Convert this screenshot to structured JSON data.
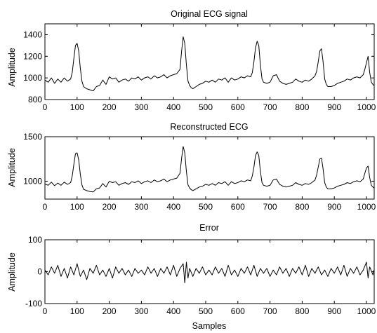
{
  "figure": {
    "xlabel": "Samples"
  },
  "chart_data": [
    {
      "type": "line",
      "title": "Original ECG signal",
      "xlabel": "",
      "ylabel": "Amplitude",
      "xlim": [
        0,
        1024
      ],
      "ylim": [
        800,
        1500
      ],
      "xticks": [
        0,
        100,
        200,
        300,
        400,
        500,
        600,
        700,
        800,
        900,
        1000
      ],
      "yticks": [
        800,
        1000,
        1200,
        1400
      ],
      "grid": false,
      "line_color": "#000000",
      "series": [
        {
          "x": [
            0,
            10,
            20,
            30,
            40,
            50,
            60,
            70,
            80,
            85,
            90,
            95,
            100,
            105,
            110,
            115,
            120,
            130,
            140,
            150,
            160,
            170,
            180,
            190,
            200,
            210,
            220,
            230,
            240,
            250,
            260,
            270,
            280,
            290,
            300,
            310,
            320,
            330,
            340,
            350,
            360,
            370,
            380,
            390,
            400,
            410,
            420,
            425,
            430,
            435,
            440,
            445,
            450,
            455,
            460,
            470,
            480,
            490,
            500,
            510,
            520,
            530,
            540,
            550,
            560,
            570,
            580,
            590,
            600,
            610,
            620,
            630,
            640,
            645,
            650,
            655,
            660,
            665,
            670,
            675,
            680,
            690,
            700,
            710,
            720,
            730,
            740,
            750,
            760,
            770,
            780,
            790,
            800,
            810,
            820,
            830,
            840,
            845,
            850,
            855,
            860,
            865,
            870,
            875,
            880,
            890,
            900,
            910,
            920,
            930,
            940,
            950,
            960,
            970,
            980,
            990,
            995,
            1000,
            1005,
            1010,
            1015,
            1020,
            1023
          ],
          "values": [
            980,
            960,
            1000,
            950,
            990,
            960,
            1000,
            970,
            990,
            1050,
            1180,
            1300,
            1320,
            1250,
            1090,
            970,
            920,
            900,
            890,
            880,
            920,
            930,
            980,
            940,
            1010,
            990,
            1000,
            960,
            980,
            990,
            970,
            1000,
            990,
            1010,
            980,
            1000,
            1010,
            990,
            1020,
            1000,
            1010,
            1030,
            1000,
            1020,
            1030,
            1040,
            1080,
            1250,
            1380,
            1320,
            1120,
            970,
            930,
            910,
            900,
            920,
            940,
            950,
            970,
            960,
            980,
            960,
            990,
            980,
            1000,
            960,
            1000,
            980,
            990,
            1010,
            1000,
            1020,
            1010,
            1050,
            1150,
            1280,
            1340,
            1300,
            1120,
            990,
            960,
            950,
            960,
            1020,
            1030,
            970,
            950,
            940,
            950,
            960,
            990,
            970,
            960,
            980,
            970,
            990,
            1020,
            1060,
            1150,
            1250,
            1270,
            1150,
            990,
            940,
            920,
            920,
            930,
            950,
            960,
            970,
            990,
            980,
            1000,
            1010,
            1000,
            1030,
            1080,
            1140,
            1200,
            1050,
            960,
            940,
            930
          ]
        }
      ]
    },
    {
      "type": "line",
      "title": "Reconstructed ECG",
      "xlabel": "",
      "ylabel": "Amplitude",
      "xlim": [
        0,
        1024
      ],
      "ylim": [
        800,
        1500
      ],
      "xticks": [
        0,
        100,
        200,
        300,
        400,
        500,
        600,
        700,
        800,
        900,
        1000
      ],
      "yticks": [
        1000,
        1500
      ],
      "grid": false,
      "line_color": "#000000",
      "series": [
        {
          "x": [
            0,
            10,
            20,
            30,
            40,
            50,
            60,
            70,
            80,
            85,
            90,
            95,
            100,
            105,
            110,
            115,
            120,
            130,
            140,
            150,
            160,
            170,
            180,
            190,
            200,
            210,
            220,
            230,
            240,
            250,
            260,
            270,
            280,
            290,
            300,
            310,
            320,
            330,
            340,
            350,
            360,
            370,
            380,
            390,
            400,
            410,
            420,
            425,
            430,
            435,
            440,
            445,
            450,
            455,
            460,
            470,
            480,
            490,
            500,
            510,
            520,
            530,
            540,
            550,
            560,
            570,
            580,
            590,
            600,
            610,
            620,
            630,
            640,
            645,
            650,
            655,
            660,
            665,
            670,
            675,
            680,
            690,
            700,
            710,
            720,
            730,
            740,
            750,
            760,
            770,
            780,
            790,
            800,
            810,
            820,
            830,
            840,
            845,
            850,
            855,
            860,
            865,
            870,
            875,
            880,
            890,
            900,
            910,
            920,
            930,
            940,
            950,
            960,
            970,
            980,
            990,
            995,
            1000,
            1005,
            1010,
            1015,
            1020,
            1023
          ],
          "values": [
            970,
            955,
            990,
            950,
            980,
            955,
            990,
            965,
            985,
            1060,
            1190,
            1310,
            1320,
            1240,
            1080,
            960,
            910,
            895,
            885,
            880,
            915,
            925,
            975,
            935,
            1000,
            985,
            995,
            955,
            975,
            985,
            965,
            995,
            985,
            1005,
            975,
            995,
            1005,
            985,
            1015,
            995,
            1005,
            1025,
            995,
            1015,
            1025,
            1035,
            1090,
            1260,
            1390,
            1320,
            1110,
            960,
            925,
            905,
            895,
            915,
            935,
            945,
            965,
            955,
            975,
            955,
            985,
            975,
            995,
            955,
            995,
            975,
            985,
            1005,
            995,
            1015,
            1005,
            1060,
            1160,
            1290,
            1330,
            1290,
            1110,
            985,
            955,
            945,
            955,
            1015,
            1025,
            965,
            945,
            935,
            945,
            955,
            985,
            965,
            955,
            975,
            965,
            985,
            1015,
            1070,
            1160,
            1250,
            1260,
            1140,
            985,
            935,
            915,
            915,
            925,
            945,
            955,
            965,
            985,
            975,
            995,
            1005,
            995,
            1025,
            1090,
            1150,
            1170,
            1040,
            955,
            935,
            925
          ]
        }
      ]
    },
    {
      "type": "line",
      "title": "Error",
      "xlabel": "Samples",
      "ylabel": "Amplitude",
      "xlim": [
        0,
        1024
      ],
      "ylim": [
        -100,
        100
      ],
      "xticks": [
        0,
        100,
        200,
        300,
        400,
        500,
        600,
        700,
        800,
        900,
        1000
      ],
      "yticks": [
        -100,
        0,
        100
      ],
      "grid": false,
      "line_color": "#000000",
      "series": [
        {
          "x": [
            0,
            10,
            20,
            30,
            40,
            50,
            60,
            70,
            80,
            90,
            100,
            110,
            120,
            130,
            140,
            150,
            160,
            170,
            180,
            190,
            200,
            210,
            220,
            230,
            240,
            250,
            260,
            270,
            280,
            290,
            300,
            310,
            320,
            330,
            340,
            350,
            360,
            370,
            380,
            390,
            400,
            410,
            420,
            430,
            435,
            440,
            445,
            450,
            460,
            470,
            480,
            490,
            500,
            510,
            520,
            530,
            540,
            550,
            560,
            570,
            580,
            590,
            600,
            610,
            620,
            630,
            640,
            650,
            660,
            670,
            680,
            690,
            700,
            710,
            720,
            730,
            740,
            750,
            760,
            770,
            780,
            790,
            800,
            810,
            820,
            830,
            840,
            850,
            860,
            870,
            880,
            890,
            900,
            910,
            920,
            930,
            940,
            950,
            960,
            970,
            980,
            990,
            1000,
            1005,
            1010,
            1020,
            1023
          ],
          "values": [
            5,
            -10,
            15,
            -5,
            20,
            -15,
            10,
            -20,
            15,
            -10,
            25,
            -15,
            5,
            -25,
            10,
            -5,
            20,
            -10,
            5,
            -15,
            10,
            -20,
            15,
            -5,
            10,
            -10,
            5,
            -15,
            10,
            -5,
            5,
            -10,
            15,
            -5,
            10,
            -15,
            10,
            -5,
            15,
            -10,
            20,
            -15,
            10,
            25,
            -35,
            30,
            -20,
            10,
            -15,
            10,
            -5,
            15,
            -10,
            5,
            -10,
            15,
            -5,
            10,
            -15,
            20,
            -10,
            5,
            -15,
            10,
            -5,
            15,
            -10,
            20,
            -15,
            10,
            -5,
            10,
            -15,
            5,
            -10,
            15,
            -5,
            10,
            -15,
            10,
            -5,
            15,
            -10,
            20,
            -15,
            10,
            -5,
            15,
            -10,
            5,
            -15,
            10,
            -5,
            15,
            -10,
            20,
            -15,
            10,
            -5,
            15,
            -10,
            5,
            30,
            -20,
            15,
            -10,
            5
          ]
        }
      ]
    }
  ]
}
